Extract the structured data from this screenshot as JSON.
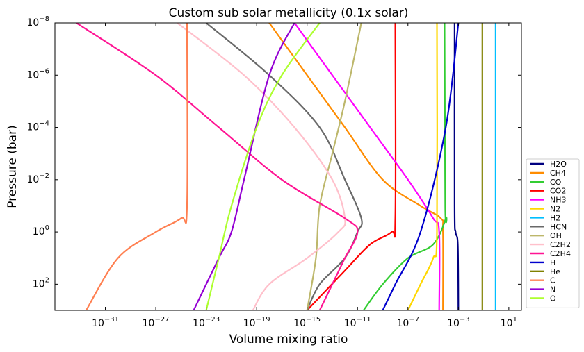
{
  "chart_data": {
    "type": "line",
    "title": "Custom sub solar metallicity (0.1x solar)",
    "xlabel": "Volume mixing ratio",
    "ylabel": "Pressure (bar)",
    "x_scale": "log",
    "y_scale": "log",
    "y_inverted": true,
    "xlim": [
      1e-35,
      100.0
    ],
    "ylim": [
      1000.0,
      1e-08
    ],
    "x_ticks": [
      {
        "value": 1e-31,
        "base": "10",
        "exp": "−31"
      },
      {
        "value": 1e-27,
        "base": "10",
        "exp": "−27"
      },
      {
        "value": 1e-23,
        "base": "10",
        "exp": "−23"
      },
      {
        "value": 1e-19,
        "base": "10",
        "exp": "−19"
      },
      {
        "value": 1e-15,
        "base": "10",
        "exp": "−15"
      },
      {
        "value": 1e-11,
        "base": "10",
        "exp": "−11"
      },
      {
        "value": 1e-07,
        "base": "10",
        "exp": "−7"
      },
      {
        "value": 0.001,
        "base": "10",
        "exp": "−3"
      },
      {
        "value": 10.0,
        "base": "10",
        "exp": "1"
      }
    ],
    "y_ticks": [
      {
        "value": 1e-08,
        "base": "10",
        "exp": "−8"
      },
      {
        "value": 1e-06,
        "base": "10",
        "exp": "−6"
      },
      {
        "value": 0.0001,
        "base": "10",
        "exp": "−4"
      },
      {
        "value": 0.01,
        "base": "10",
        "exp": "−2"
      },
      {
        "value": 1,
        "base": "10",
        "exp": "0"
      },
      {
        "value": 100.0,
        "base": "10",
        "exp": "2"
      }
    ],
    "legend_position": "lower-right outside",
    "series": [
      {
        "name": "H2O",
        "color": "#000080",
        "points": [
          [
            0.0005,
            1e-08
          ],
          [
            0.0005,
            0.1
          ],
          [
            0.0006,
            1
          ],
          [
            0.0009,
            3
          ],
          [
            0.001,
            1000.0
          ]
        ]
      },
      {
        "name": "CH4",
        "color": "#ff8c00",
        "points": [
          [
            1e-18,
            1e-08
          ],
          [
            1e-15,
            1e-06
          ],
          [
            1e-12,
            0.0001
          ],
          [
            1e-09,
            0.01
          ],
          [
            1e-06,
            0.1
          ],
          [
            4e-05,
            0.3
          ],
          [
            6e-05,
            1
          ],
          [
            6e-05,
            1000.0
          ]
        ]
      },
      {
        "name": "CO",
        "color": "#32cd32",
        "points": [
          [
            8e-05,
            1e-08
          ],
          [
            9e-05,
            0.1
          ],
          [
            0.0001,
            0.3
          ],
          [
            1e-05,
            3
          ],
          [
            1e-07,
            10
          ],
          [
            1e-09,
            100
          ],
          [
            3e-11,
            1000.0
          ]
        ]
      },
      {
        "name": "CO2",
        "color": "#ff0000",
        "points": [
          [
            1e-08,
            1e-08
          ],
          [
            1e-08,
            0.3
          ],
          [
            5e-09,
            1
          ],
          [
            1e-10,
            3
          ],
          [
            1e-12,
            30
          ],
          [
            1e-15,
            1000.0
          ]
        ]
      },
      {
        "name": "NH3",
        "color": "#ff00ff",
        "points": [
          [
            1e-16,
            1e-08
          ],
          [
            1e-13,
            1e-06
          ],
          [
            1e-10,
            0.0001
          ],
          [
            1e-07,
            0.01
          ],
          [
            1e-05,
            0.3
          ],
          [
            3e-05,
            1
          ],
          [
            3e-05,
            1000.0
          ]
        ]
      },
      {
        "name": "N2",
        "color": "#ffd700",
        "points": [
          [
            2e-05,
            1e-08
          ],
          [
            2e-05,
            1
          ],
          [
            1e-05,
            10
          ],
          [
            1e-06,
            100
          ],
          [
            1e-07,
            1000.0
          ]
        ]
      },
      {
        "name": "H2",
        "color": "#00bfff",
        "points": [
          [
            0.9,
            1e-08
          ],
          [
            0.9,
            1000.0
          ]
        ]
      },
      {
        "name": "HCN",
        "color": "#696969",
        "points": [
          [
            1e-23,
            1e-08
          ],
          [
            1e-18,
            1e-06
          ],
          [
            1e-14,
            0.0001
          ],
          [
            1e-12,
            0.01
          ],
          [
            2e-11,
            0.3
          ],
          [
            1e-11,
            1
          ],
          [
            1e-12,
            10
          ],
          [
            1e-14,
            100
          ],
          [
            1e-15,
            1000.0
          ]
        ]
      },
      {
        "name": "OH",
        "color": "#bdb76b",
        "points": [
          [
            2e-11,
            1e-08
          ],
          [
            1e-12,
            1e-05
          ],
          [
            1e-13,
            0.001
          ],
          [
            1e-14,
            0.1
          ],
          [
            5e-15,
            10
          ],
          [
            1e-15,
            1000.0
          ]
        ]
      },
      {
        "name": "C2H2",
        "color": "#ffc0cb",
        "points": [
          [
            5e-26,
            1e-08
          ],
          [
            1e-20,
            1e-06
          ],
          [
            1e-16,
            0.0001
          ],
          [
            1e-13,
            0.01
          ],
          [
            1e-12,
            0.3
          ],
          [
            3e-13,
            1
          ],
          [
            1e-15,
            10
          ],
          [
            1e-18,
            100
          ],
          [
            5e-20,
            1000.0
          ]
        ]
      },
      {
        "name": "C2H4",
        "color": "#ff1493",
        "points": [
          [
            5e-34,
            1e-08
          ],
          [
            1e-27,
            1e-06
          ],
          [
            1e-22,
            0.0001
          ],
          [
            1e-17,
            0.01
          ],
          [
            1e-12,
            0.3
          ],
          [
            1e-11,
            1
          ],
          [
            1e-12,
            10
          ],
          [
            1e-13,
            100
          ],
          [
            1e-14,
            1000.0
          ]
        ]
      },
      {
        "name": "H",
        "color": "#0000cd",
        "points": [
          [
            0.001,
            1e-08
          ],
          [
            0.0001,
            0.0001
          ],
          [
            1e-06,
            1
          ],
          [
            1e-08,
            100
          ],
          [
            1e-09,
            1000.0
          ]
        ]
      },
      {
        "name": "He",
        "color": "#808000",
        "points": [
          [
            0.08,
            1e-08
          ],
          [
            0.08,
            1000.0
          ]
        ]
      },
      {
        "name": "C",
        "color": "#ff7f50",
        "points": [
          [
            3e-25,
            1e-08
          ],
          [
            3e-25,
            0.1
          ],
          [
            1e-25,
            0.3
          ],
          [
            1e-27,
            1
          ],
          [
            1e-30,
            10
          ],
          [
            3e-33,
            1000.0
          ]
        ]
      },
      {
        "name": "N",
        "color": "#9400d3",
        "points": [
          [
            1e-16,
            1e-08
          ],
          [
            1e-18,
            1e-06
          ],
          [
            1e-20,
            0.01
          ],
          [
            1e-21,
            1
          ],
          [
            1e-22,
            10
          ],
          [
            1e-24,
            1000.0
          ]
        ]
      },
      {
        "name": "O",
        "color": "#adff2f",
        "points": [
          [
            1e-14,
            1e-08
          ],
          [
            1e-17,
            1e-06
          ],
          [
            1e-19,
            0.0001
          ],
          [
            1e-21,
            0.1
          ],
          [
            1e-22,
            10
          ],
          [
            1e-23,
            1000.0
          ]
        ]
      }
    ]
  }
}
